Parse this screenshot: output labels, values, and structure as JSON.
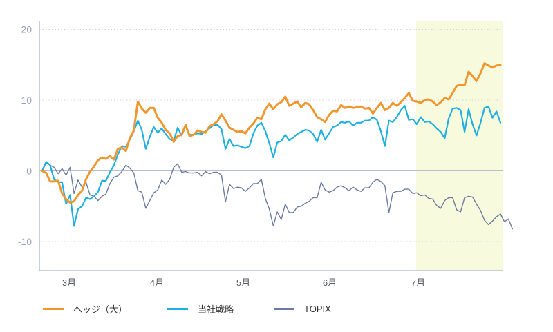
{
  "chart_data": {
    "type": "line",
    "title": "",
    "xlabel": "",
    "ylabel": "",
    "ylim": [
      -14,
      21
    ],
    "yticks": [
      -10,
      0,
      10,
      20
    ],
    "xtick_labels": [
      "3月",
      "4月",
      "5月",
      "6月",
      "7月"
    ],
    "grid": "horizontal dotted",
    "highlight": {
      "from": "7月",
      "to": "end",
      "color": "#f7fadc"
    },
    "series": [
      {
        "name": "ヘッジ（大）",
        "color": "#f0962e",
        "values": [
          0,
          -0.3,
          -1.5,
          -1.5,
          -1.4,
          -3.2,
          -4,
          -4.5,
          -4.3,
          -3.4,
          -2.8,
          -1.2,
          -0.1,
          0.6,
          1.5,
          1.9,
          1.7,
          2.1,
          1.6,
          3.1,
          3.3,
          2.8,
          4.6,
          5.7,
          9.8,
          8.8,
          8.2,
          8.9,
          8.9,
          7.5,
          6.8,
          5.8,
          5.3,
          4.1,
          4.9,
          5.1,
          6.5,
          4.9,
          5.1,
          5.7,
          5.5,
          5.4,
          6.3,
          6.6,
          7,
          8,
          7.1,
          6.1,
          5.8,
          5.5,
          5.6,
          5.3,
          6.1,
          6.7,
          7.5,
          7.3,
          8.7,
          9.5,
          8.7,
          9.4,
          9.7,
          10.5,
          9.2,
          9.5,
          9.8,
          9,
          9.6,
          9.4,
          8.6,
          7.6,
          7.3,
          6.9,
          7.9,
          8.5,
          8.4,
          9.3,
          8.9,
          9.1,
          8.9,
          9,
          9.1,
          8.8,
          8.9,
          8.1,
          8.9,
          9.6,
          8.6,
          8.9,
          9.6,
          9.2,
          9.7,
          10.3,
          11,
          9.9,
          9.8,
          9.6,
          10,
          10.1,
          9.8,
          9.3,
          9.7,
          10.3,
          10.1,
          11,
          12,
          12.2,
          12.1,
          14,
          13.4,
          12.7,
          13.8,
          15.2,
          14.9,
          14.6,
          14.9,
          15
        ]
      },
      {
        "name": "当社戦略",
        "color": "#1fb0e0",
        "values": [
          0,
          1.3,
          0.8,
          -1.2,
          -1.6,
          -1.6,
          -4.7,
          -3.4,
          -7.8,
          -5.4,
          -5,
          -3.8,
          -4,
          -3.6,
          -3,
          -1.4,
          -1.4,
          -0.2,
          0.8,
          2.3,
          3.5,
          3.4,
          4.4,
          5.6,
          7.1,
          5.8,
          3.1,
          4.8,
          6.2,
          5.4,
          6,
          5.2,
          4.5,
          4.2,
          6.1,
          5,
          6.3,
          5.1,
          5.1,
          5.3,
          5.2,
          5.6,
          6,
          6.5,
          6.5,
          5.9,
          3.1,
          4.5,
          3.5,
          3.6,
          3.4,
          3.2,
          3.5,
          5.3,
          6.4,
          6.8,
          5.6,
          3.9,
          1.9,
          4,
          4.2,
          5.1,
          4.3,
          4.7,
          5.2,
          5.5,
          5.8,
          5.7,
          5.2,
          4.1,
          5.8,
          4.4,
          5.3,
          6.2,
          6.4,
          6.9,
          6.8,
          7,
          6.4,
          6.8,
          6.8,
          7.1,
          7.1,
          7.6,
          7.2,
          5.6,
          3.5,
          7.1,
          6.9,
          7.6,
          8.6,
          9.2,
          7.2,
          7.3,
          6.6,
          7.6,
          6.9,
          7,
          6.6,
          6,
          5.5,
          4.6,
          7.4,
          8.8,
          8.9,
          8.6,
          5.5,
          8.7,
          6.6,
          5,
          6.8,
          8.9,
          9.1,
          7.5,
          8.4,
          6.8
        ]
      },
      {
        "name": "TOPIX",
        "color": "#6b7aa2",
        "values": [
          0,
          1.1,
          0.8,
          0.5,
          -0.4,
          0.3,
          -0.6,
          0.5,
          -3.2,
          -1.3,
          -2.3,
          -1.6,
          -3.4,
          -3.6,
          -4.2,
          -3.6,
          -3.3,
          -1.8,
          -0.9,
          -0.7,
          -0.1,
          0.8,
          0.4,
          -0.3,
          -2.8,
          -3,
          -5.3,
          -4.2,
          -3.1,
          -2.7,
          -1.3,
          -1.9,
          -1.2,
          0.5,
          1,
          -0.2,
          -0.1,
          -0.3,
          -0.3,
          -0.2,
          -0.7,
          -0.1,
          -0.4,
          -0.2,
          -0.2,
          -0.6,
          -4.4,
          -1.9,
          -2.5,
          -2.3,
          -2.4,
          -2.9,
          -2.4,
          -1.8,
          -1.8,
          -1.2,
          -3.9,
          -5.4,
          -7.8,
          -5.8,
          -6.9,
          -4.7,
          -5.9,
          -5.9,
          -5.1,
          -5,
          -4.6,
          -4.3,
          -3.8,
          -3.8,
          -1.6,
          -2.7,
          -3,
          -2.8,
          -2.3,
          -2.1,
          -2.4,
          -2.8,
          -2.3,
          -2.7,
          -2.9,
          -2.4,
          -2.4,
          -1.6,
          -1.2,
          -1.5,
          -2.1,
          -5.9,
          -3.1,
          -2.9,
          -2.9,
          -2.6,
          -2.6,
          -3.2,
          -3.1,
          -3.5,
          -3.4,
          -3.9,
          -4,
          -4.9,
          -5.3,
          -4.2,
          -3.8,
          -3.8,
          -5.5,
          -5.8,
          -3.8,
          -3.6,
          -3.7,
          -4.7,
          -5.6,
          -7,
          -7.6,
          -7.1,
          -6.5,
          -6.1,
          -7.2,
          -6.8,
          -8.2
        ]
      }
    ]
  }
}
